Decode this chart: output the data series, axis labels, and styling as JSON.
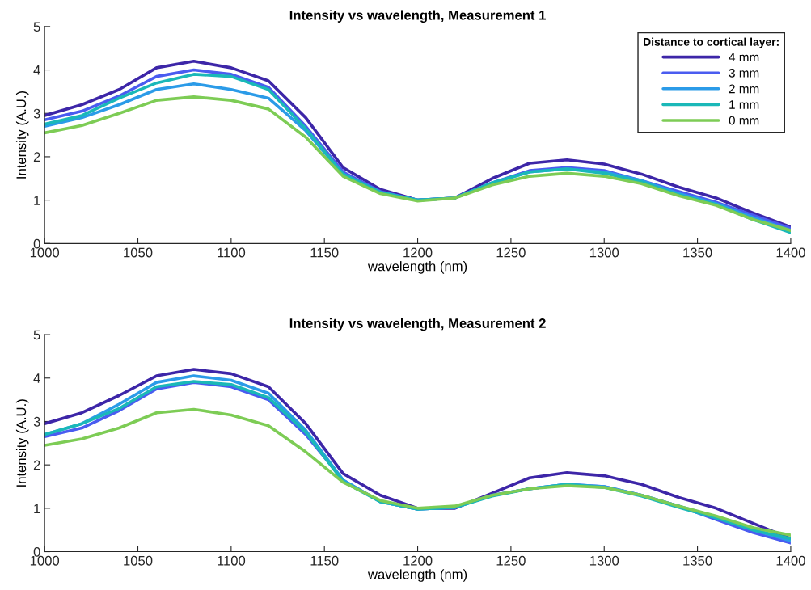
{
  "chart_data": [
    {
      "type": "line",
      "title": "Intensity vs wavelength, Measurement 1",
      "xlabel": "wavelength (nm)",
      "ylabel": "Intensity (A.U.)",
      "legend_title": "Distance to cortical layer:",
      "legend": "top right",
      "grid": false,
      "x": [
        1000,
        1020,
        1040,
        1060,
        1080,
        1100,
        1120,
        1140,
        1160,
        1180,
        1200,
        1220,
        1240,
        1260,
        1280,
        1300,
        1320,
        1340,
        1360,
        1380,
        1400
      ],
      "xlim": [
        1000,
        1400
      ],
      "xticks": [
        1000,
        1050,
        1100,
        1150,
        1200,
        1250,
        1300,
        1350,
        1400
      ],
      "ylim": [
        0,
        5
      ],
      "yticks": [
        0,
        1,
        2,
        3,
        4,
        5
      ],
      "series": [
        {
          "name": "4 mm",
          "color": "#3d26a8",
          "values": [
            2.95,
            3.2,
            3.55,
            4.05,
            4.2,
            4.05,
            3.75,
            2.9,
            1.75,
            1.25,
            1.0,
            1.05,
            1.5,
            1.85,
            1.93,
            1.83,
            1.6,
            1.3,
            1.05,
            0.7,
            0.38
          ]
        },
        {
          "name": "3 mm",
          "color": "#4a5cf0",
          "values": [
            2.85,
            3.05,
            3.4,
            3.85,
            4.0,
            3.9,
            3.6,
            2.7,
            1.65,
            1.2,
            1.0,
            1.05,
            1.4,
            1.68,
            1.75,
            1.68,
            1.45,
            1.2,
            0.95,
            0.65,
            0.35
          ]
        },
        {
          "name": "2 mm",
          "color": "#2b9be8",
          "values": [
            2.7,
            2.9,
            3.2,
            3.55,
            3.68,
            3.55,
            3.35,
            2.6,
            1.6,
            1.18,
            1.0,
            1.05,
            1.4,
            1.65,
            1.72,
            1.65,
            1.45,
            1.15,
            0.92,
            0.6,
            0.3
          ]
        },
        {
          "name": "1 mm",
          "color": "#1ab8b8",
          "values": [
            2.75,
            2.95,
            3.35,
            3.7,
            3.9,
            3.85,
            3.55,
            2.65,
            1.6,
            1.18,
            1.0,
            1.05,
            1.4,
            1.65,
            1.72,
            1.62,
            1.42,
            1.12,
            0.9,
            0.55,
            0.25
          ]
        },
        {
          "name": "0 mm",
          "color": "#7dcc55",
          "values": [
            2.55,
            2.72,
            3.0,
            3.3,
            3.38,
            3.3,
            3.1,
            2.45,
            1.55,
            1.15,
            0.98,
            1.05,
            1.35,
            1.55,
            1.62,
            1.55,
            1.38,
            1.1,
            0.88,
            0.55,
            0.3
          ]
        }
      ]
    },
    {
      "type": "line",
      "title": "Intensity vs wavelength, Measurement 2",
      "xlabel": "wavelength (nm)",
      "ylabel": "Intensity (A.U.)",
      "legend": false,
      "grid": false,
      "x": [
        1000,
        1020,
        1040,
        1060,
        1080,
        1100,
        1120,
        1140,
        1160,
        1180,
        1200,
        1220,
        1240,
        1260,
        1280,
        1300,
        1320,
        1340,
        1360,
        1380,
        1400
      ],
      "xlim": [
        1000,
        1400
      ],
      "xticks": [
        1000,
        1050,
        1100,
        1150,
        1200,
        1250,
        1300,
        1350,
        1400
      ],
      "ylim": [
        0,
        5
      ],
      "yticks": [
        0,
        1,
        2,
        3,
        4,
        5
      ],
      "series": [
        {
          "color": "#3d26a8",
          "values": [
            2.95,
            3.2,
            3.6,
            4.05,
            4.2,
            4.1,
            3.8,
            2.95,
            1.8,
            1.3,
            1.0,
            1.0,
            1.35,
            1.7,
            1.82,
            1.75,
            1.55,
            1.25,
            1.0,
            0.65,
            0.3
          ]
        },
        {
          "color": "#4a5cf0",
          "values": [
            2.65,
            2.85,
            3.25,
            3.75,
            3.9,
            3.8,
            3.5,
            2.7,
            1.65,
            1.15,
            0.98,
            1.02,
            1.3,
            1.45,
            1.55,
            1.5,
            1.3,
            1.05,
            0.74,
            0.44,
            0.2
          ]
        },
        {
          "color": "#2b9be8",
          "values": [
            2.7,
            2.95,
            3.4,
            3.9,
            4.05,
            3.95,
            3.65,
            2.8,
            1.65,
            1.15,
            0.98,
            1.02,
            1.3,
            1.45,
            1.55,
            1.5,
            1.3,
            1.05,
            0.8,
            0.5,
            0.25
          ]
        },
        {
          "color": "#1ab8b8",
          "values": [
            2.7,
            2.95,
            3.3,
            3.8,
            3.92,
            3.85,
            3.55,
            2.75,
            1.62,
            1.15,
            0.98,
            1.02,
            1.28,
            1.45,
            1.55,
            1.48,
            1.28,
            1.02,
            0.78,
            0.5,
            0.3
          ]
        },
        {
          "color": "#7dcc55",
          "values": [
            2.45,
            2.6,
            2.85,
            3.2,
            3.28,
            3.15,
            2.9,
            2.3,
            1.6,
            1.18,
            1.0,
            1.05,
            1.3,
            1.45,
            1.52,
            1.48,
            1.3,
            1.05,
            0.82,
            0.55,
            0.38
          ]
        }
      ]
    }
  ]
}
